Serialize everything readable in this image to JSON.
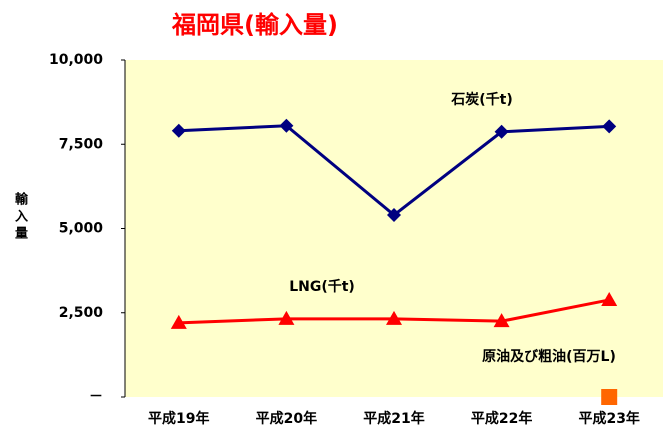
{
  "chart_data": {
    "type": "line",
    "title": "福岡県(輸入量)",
    "y_label": "輸入量",
    "categories": [
      "平成19年",
      "平成20年",
      "平成21年",
      "平成22年",
      "平成23年"
    ],
    "series": [
      {
        "name": "石炭(千t)",
        "color": "#000080",
        "marker": "diamond",
        "values": [
          7900,
          8050,
          5400,
          7870,
          8030
        ]
      },
      {
        "name": "LNG(千t)",
        "color": "#ff0000",
        "marker": "triangle",
        "values": [
          2200,
          2320,
          2320,
          2250,
          2880
        ]
      },
      {
        "name": "原油及び粗油(百万L)",
        "color": "#ff6600",
        "marker": "square",
        "values": [
          null,
          null,
          null,
          null,
          0
        ]
      }
    ],
    "ylim": [
      0,
      10000
    ],
    "yticks": [
      {
        "value": 0,
        "label": "－"
      },
      {
        "value": 2500,
        "label": "2,500"
      },
      {
        "value": 5000,
        "label": "5,000"
      },
      {
        "value": 7500,
        "label": "7,500"
      },
      {
        "value": 10000,
        "label": "10,000"
      }
    ],
    "grid": false
  }
}
